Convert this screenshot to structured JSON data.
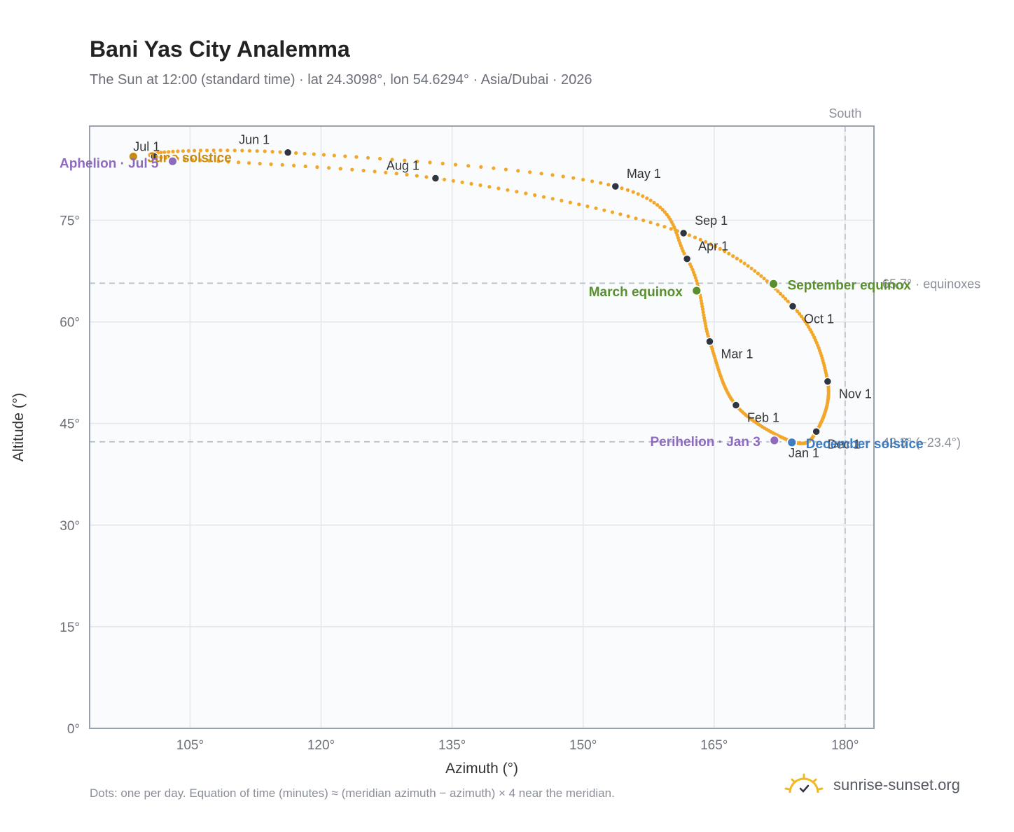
{
  "title": "Bani Yas City Analemma",
  "subtitle": "The Sun at 12:00 (standard time) · lat 24.3098°, lon 54.6294° · Asia/Dubai · 2026",
  "footnote": "Dots: one per day. Equation of time (minutes) ≈ (meridian azimuth − azimuth) × 4 near the meridian.",
  "brand": {
    "name": "sunrise-sunset.org",
    "icon": "sun-logo-icon",
    "icon_color": "#f2b81e"
  },
  "colors": {
    "curve": "#f2a72a",
    "month_marker": "#2f3540",
    "equinox": "#5a8f2e",
    "june_solstice": "#c98a10",
    "december_solstice": "#3f7cc0",
    "apsis": "#8e6bbf",
    "grid": "#e3e7ec",
    "frame": "#9aa3ad",
    "plot_bg": "#f9fbfd",
    "reference_line": "#b9c2ca"
  },
  "chart_data": {
    "type": "scatter",
    "xlabel": "Azimuth (°)",
    "ylabel": "Altitude (°)",
    "xlim": [
      93.5,
      183.3
    ],
    "ylim": [
      0,
      88.9
    ],
    "x_ticks": [
      105,
      120,
      135,
      150,
      165,
      180
    ],
    "x_tick_labels": [
      "105°",
      "120°",
      "135°",
      "150°",
      "165°",
      "180°"
    ],
    "y_ticks": [
      0,
      15,
      30,
      45,
      60,
      75
    ],
    "y_tick_labels": [
      "0°",
      "15°",
      "30°",
      "45°",
      "60°",
      "75°"
    ],
    "grid": true,
    "series": [
      {
        "daily_path_month_starts": [
          {
            "date": "Jan 1",
            "az": 174.0,
            "alt": 42.3
          },
          {
            "date": "Feb 1",
            "az": 167.5,
            "alt": 47.7
          },
          {
            "date": "Mar 1",
            "az": 164.5,
            "alt": 57.1
          },
          {
            "date": "Apr 1",
            "az": 161.9,
            "alt": 69.3
          },
          {
            "date": "May 1",
            "az": 153.7,
            "alt": 80.0
          },
          {
            "date": "Jun 1",
            "az": 116.2,
            "alt": 85.0
          },
          {
            "date": "Jul 1",
            "az": 100.9,
            "alt": 84.4
          },
          {
            "date": "Aug 1",
            "az": 133.1,
            "alt": 81.2
          },
          {
            "date": "Sep 1",
            "az": 161.5,
            "alt": 73.1
          },
          {
            "date": "Oct 1",
            "az": 174.0,
            "alt": 62.3
          },
          {
            "date": "Nov 1",
            "az": 178.0,
            "alt": 51.2
          },
          {
            "date": "Dec 1",
            "az": 176.7,
            "alt": 43.8
          }
        ]
      }
    ],
    "month_labels": [
      "Jan 1",
      "Feb 1",
      "Mar 1",
      "Apr 1",
      "May 1",
      "Jun 1",
      "Jul 1",
      "Aug 1",
      "Sep 1",
      "Oct 1",
      "Nov 1",
      "Dec 1"
    ],
    "special_points": [
      {
        "label": "March equinox",
        "az": 163.0,
        "alt": 64.6,
        "kind": "equinox"
      },
      {
        "label": "September equinox",
        "az": 171.8,
        "alt": 65.6,
        "kind": "equinox"
      },
      {
        "label": "June solstice",
        "az": 98.5,
        "alt": 84.4,
        "kind": "june_solstice"
      },
      {
        "label": "December solstice",
        "az": 173.9,
        "alt": 42.2,
        "kind": "december_solstice"
      },
      {
        "label": "Perihelion · Jan 3",
        "az": 171.9,
        "alt": 42.5,
        "kind": "apsis"
      },
      {
        "label": "Aphelion · Jul 5",
        "az": 103.0,
        "alt": 83.7,
        "kind": "apsis"
      }
    ],
    "reference_lines": [
      {
        "orientation": "vertical",
        "value": 180,
        "label": "South"
      },
      {
        "orientation": "horizontal",
        "value": 65.7,
        "label": "65.7° · equinoxes"
      },
      {
        "orientation": "horizontal",
        "value": 42.3,
        "label": "42.3° (−23.4°)"
      }
    ]
  }
}
